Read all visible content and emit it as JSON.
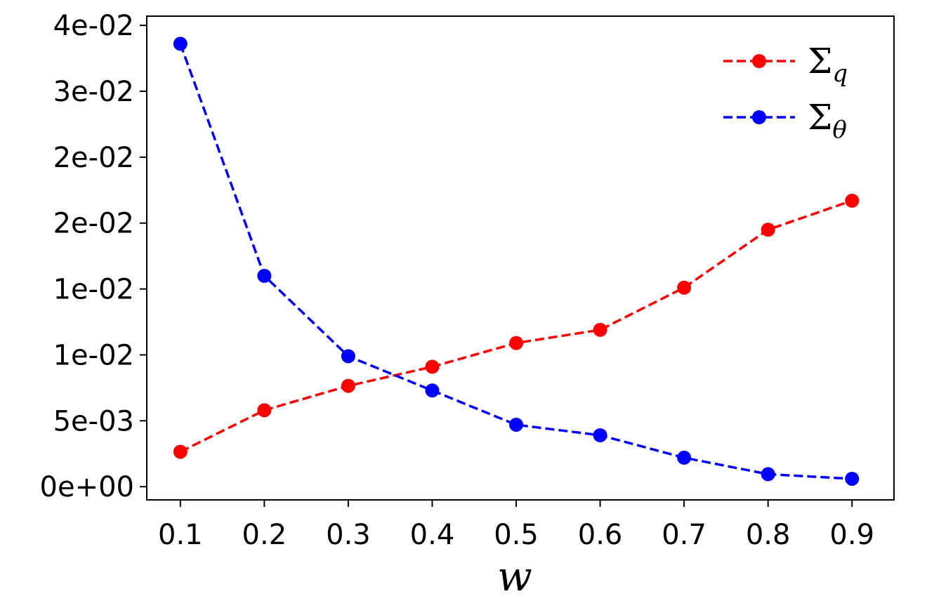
{
  "chart_data": {
    "type": "line",
    "title": "",
    "xlabel": "w",
    "ylabel": "",
    "x": [
      0.1,
      0.2,
      0.3,
      0.4,
      0.5,
      0.6,
      0.7,
      0.8,
      0.9
    ],
    "x_tick_labels": [
      "0.1",
      "0.2",
      "0.3",
      "0.4",
      "0.5",
      "0.6",
      "0.7",
      "0.8",
      "0.9"
    ],
    "y_ticks": [
      0,
      0.005,
      0.01,
      0.015,
      0.02,
      0.025,
      0.03,
      0.035
    ],
    "y_tick_labels": [
      "0e+00",
      "5e-03",
      "1e-02",
      "1e-02",
      "2e-02",
      "2e-02",
      "3e-02",
      "4e-02"
    ],
    "xlim": [
      0.06,
      0.95
    ],
    "ylim": [
      -0.001,
      0.0357
    ],
    "grid": false,
    "legend_position": "top-right",
    "series": [
      {
        "name_main": "Σ",
        "name_sub": "q",
        "color": "#ff0000",
        "line_style": "dashed",
        "marker": "circle",
        "values": [
          0.00265,
          0.0058,
          0.00765,
          0.0091,
          0.0109,
          0.0119,
          0.0151,
          0.0195,
          0.0217
        ]
      },
      {
        "name_main": "Σ",
        "name_sub": "θ",
        "color": "#0000ff",
        "line_style": "dashed",
        "marker": "circle",
        "values": [
          0.0336,
          0.016,
          0.0099,
          0.0073,
          0.0047,
          0.0039,
          0.0022,
          0.00095,
          0.0006
        ]
      }
    ]
  }
}
